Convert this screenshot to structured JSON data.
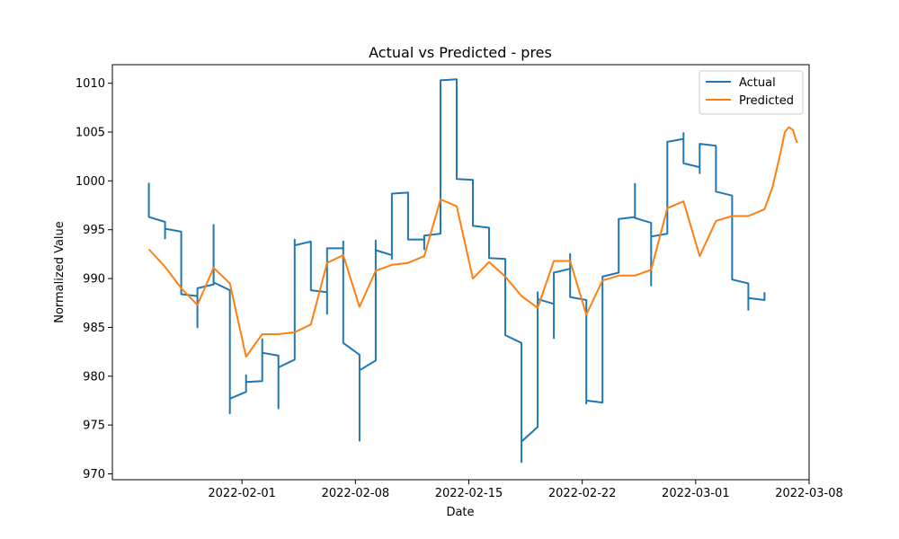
{
  "chart_data": {
    "type": "line",
    "title": "Actual vs Predicted - pres",
    "xlabel": "Date",
    "ylabel": "Normalized Value",
    "xlim": [
      "2022-01-24",
      "2022-03-08"
    ],
    "ylim": [
      969.4,
      1011.9
    ],
    "x_ticks": [
      "2022-02-01",
      "2022-02-08",
      "2022-02-15",
      "2022-02-22",
      "2022-03-01",
      "2022-03-08"
    ],
    "y_ticks": [
      970,
      975,
      980,
      985,
      990,
      995,
      1000,
      1005,
      1010
    ],
    "grid": false,
    "legend": {
      "position": "top-right"
    },
    "series": [
      {
        "name": "Actual",
        "color": "#1f77b4",
        "points": [
          [
            "2022-01-26T06:00",
            999.8
          ],
          [
            "2022-01-26T06:00",
            996.3
          ],
          [
            "2022-01-27T06:00",
            995.8
          ],
          [
            "2022-01-27T06:00",
            994.1
          ],
          [
            "2022-01-27T06:00",
            995.1
          ],
          [
            "2022-01-28T06:00",
            994.8
          ],
          [
            "2022-01-28T06:00",
            988.4
          ],
          [
            "2022-01-29T06:00",
            988.2
          ],
          [
            "2022-01-29T06:00",
            985.0
          ],
          [
            "2022-01-29T06:00",
            989.0
          ],
          [
            "2022-01-30T06:00",
            989.4
          ],
          [
            "2022-01-30T06:00",
            995.5
          ],
          [
            "2022-01-30T06:00",
            989.6
          ],
          [
            "2022-01-31T06:00",
            988.8
          ],
          [
            "2022-01-31T06:00",
            976.2
          ],
          [
            "2022-01-31T06:00",
            977.7
          ],
          [
            "2022-02-01T06:00",
            978.4
          ],
          [
            "2022-02-01T06:00",
            980.1
          ],
          [
            "2022-02-01T06:00",
            979.4
          ],
          [
            "2022-02-02T06:00",
            979.5
          ],
          [
            "2022-02-02T06:00",
            983.8
          ],
          [
            "2022-02-02T06:00",
            982.4
          ],
          [
            "2022-02-03T06:00",
            982.1
          ],
          [
            "2022-02-03T06:00",
            976.7
          ],
          [
            "2022-02-03T06:00",
            980.9
          ],
          [
            "2022-02-04T06:00",
            981.7
          ],
          [
            "2022-02-04T06:00",
            994.0
          ],
          [
            "2022-02-04T06:00",
            993.4
          ],
          [
            "2022-02-05T06:00",
            993.8
          ],
          [
            "2022-02-05T06:00",
            988.8
          ],
          [
            "2022-02-06T06:00",
            988.6
          ],
          [
            "2022-02-06T06:00",
            986.4
          ],
          [
            "2022-02-06T06:00",
            993.1
          ],
          [
            "2022-02-07T06:00",
            993.1
          ],
          [
            "2022-02-07T06:00",
            993.8
          ],
          [
            "2022-02-07T06:00",
            983.4
          ],
          [
            "2022-02-08T06:00",
            982.2
          ],
          [
            "2022-02-08T06:00",
            973.4
          ],
          [
            "2022-02-08T06:00",
            980.6
          ],
          [
            "2022-02-09T06:00",
            981.6
          ],
          [
            "2022-02-09T06:00",
            993.9
          ],
          [
            "2022-02-09T06:00",
            992.9
          ],
          [
            "2022-02-10T06:00",
            992.4
          ],
          [
            "2022-02-10T06:00",
            992.0
          ],
          [
            "2022-02-10T06:00",
            998.7
          ],
          [
            "2022-02-11T06:00",
            998.8
          ],
          [
            "2022-02-11T06:00",
            994.0
          ],
          [
            "2022-02-12T06:00",
            994.0
          ],
          [
            "2022-02-12T06:00",
            993.0
          ],
          [
            "2022-02-12T06:00",
            994.4
          ],
          [
            "2022-02-13T06:00",
            994.6
          ],
          [
            "2022-02-13T06:00",
            1010.3
          ],
          [
            "2022-02-14T06:00",
            1010.4
          ],
          [
            "2022-02-14T06:00",
            1000.2
          ],
          [
            "2022-02-15T06:00",
            1000.1
          ],
          [
            "2022-02-15T06:00",
            995.4
          ],
          [
            "2022-02-16T06:00",
            995.2
          ],
          [
            "2022-02-16T06:00",
            992.1
          ],
          [
            "2022-02-17T06:00",
            992.0
          ],
          [
            "2022-02-17T06:00",
            984.2
          ],
          [
            "2022-02-18T06:00",
            983.4
          ],
          [
            "2022-02-18T06:00",
            971.2
          ],
          [
            "2022-02-18T06:00",
            973.3
          ],
          [
            "2022-02-19T06:00",
            974.8
          ],
          [
            "2022-02-19T06:00",
            988.6
          ],
          [
            "2022-02-19T06:00",
            987.9
          ],
          [
            "2022-02-20T06:00",
            987.4
          ],
          [
            "2022-02-20T06:00",
            983.9
          ],
          [
            "2022-02-20T06:00",
            990.6
          ],
          [
            "2022-02-21T06:00",
            991.0
          ],
          [
            "2022-02-21T06:00",
            992.5
          ],
          [
            "2022-02-21T06:00",
            988.1
          ],
          [
            "2022-02-22T06:00",
            987.8
          ],
          [
            "2022-02-22T06:00",
            977.2
          ],
          [
            "2022-02-22T06:00",
            977.5
          ],
          [
            "2022-02-23T06:00",
            977.3
          ],
          [
            "2022-02-23T06:00",
            990.2
          ],
          [
            "2022-02-24T06:00",
            990.6
          ],
          [
            "2022-02-24T06:00",
            996.1
          ],
          [
            "2022-02-25T06:00",
            996.3
          ],
          [
            "2022-02-25T06:00",
            999.7
          ],
          [
            "2022-02-25T06:00",
            996.2
          ],
          [
            "2022-02-26T06:00",
            995.7
          ],
          [
            "2022-02-26T06:00",
            989.3
          ],
          [
            "2022-02-26T06:00",
            994.3
          ],
          [
            "2022-02-27T06:00",
            994.6
          ],
          [
            "2022-02-27T06:00",
            1004.0
          ],
          [
            "2022-02-28T06:00",
            1004.3
          ],
          [
            "2022-02-28T06:00",
            1004.9
          ],
          [
            "2022-02-28T06:00",
            1001.8
          ],
          [
            "2022-03-01T06:00",
            1001.4
          ],
          [
            "2022-03-01T06:00",
            1000.8
          ],
          [
            "2022-03-01T06:00",
            1003.8
          ],
          [
            "2022-03-02T06:00",
            1003.6
          ],
          [
            "2022-03-02T06:00",
            998.9
          ],
          [
            "2022-03-03T06:00",
            998.5
          ],
          [
            "2022-03-03T06:00",
            989.9
          ],
          [
            "2022-03-04T06:00",
            989.5
          ],
          [
            "2022-03-04T06:00",
            986.8
          ],
          [
            "2022-03-04T06:00",
            988.0
          ],
          [
            "2022-03-05T06:00",
            987.8
          ],
          [
            "2022-03-05T06:00",
            988.6
          ]
        ]
      },
      {
        "name": "Predicted",
        "color": "#ff7f0e",
        "points": [
          [
            "2022-01-26T06:00",
            993.0
          ],
          [
            "2022-01-27T06:00",
            991.2
          ],
          [
            "2022-01-28T06:00",
            989.0
          ],
          [
            "2022-01-29T06:00",
            987.3
          ],
          [
            "2022-01-30T06:00",
            991.1
          ],
          [
            "2022-01-31T06:00",
            989.5
          ],
          [
            "2022-02-01T06:00",
            982.0
          ],
          [
            "2022-02-02T06:00",
            984.3
          ],
          [
            "2022-02-03T06:00",
            984.3
          ],
          [
            "2022-02-04T06:00",
            984.5
          ],
          [
            "2022-02-05T06:00",
            985.3
          ],
          [
            "2022-02-06T06:00",
            991.6
          ],
          [
            "2022-02-07T06:00",
            992.4
          ],
          [
            "2022-02-08T06:00",
            987.1
          ],
          [
            "2022-02-09T06:00",
            990.8
          ],
          [
            "2022-02-10T06:00",
            991.4
          ],
          [
            "2022-02-11T06:00",
            991.6
          ],
          [
            "2022-02-12T06:00",
            992.3
          ],
          [
            "2022-02-13T06:00",
            998.1
          ],
          [
            "2022-02-14T06:00",
            997.4
          ],
          [
            "2022-02-15T06:00",
            990.0
          ],
          [
            "2022-02-16T06:00",
            991.7
          ],
          [
            "2022-02-17T06:00",
            990.2
          ],
          [
            "2022-02-18T06:00",
            988.2
          ],
          [
            "2022-02-19T06:00",
            987.0
          ],
          [
            "2022-02-20T06:00",
            991.8
          ],
          [
            "2022-02-21T06:00",
            991.8
          ],
          [
            "2022-02-22T06:00",
            986.3
          ],
          [
            "2022-02-23T06:00",
            989.8
          ],
          [
            "2022-02-24T06:00",
            990.3
          ],
          [
            "2022-02-25T06:00",
            990.3
          ],
          [
            "2022-02-26T06:00",
            990.9
          ],
          [
            "2022-02-27T06:00",
            997.2
          ],
          [
            "2022-02-28T06:00",
            997.9
          ],
          [
            "2022-03-01T06:00",
            992.3
          ],
          [
            "2022-03-02T06:00",
            995.9
          ],
          [
            "2022-03-03T06:00",
            996.4
          ],
          [
            "2022-03-04T06:00",
            996.4
          ],
          [
            "2022-03-05T06:00",
            997.1
          ],
          [
            "2022-03-05T18:00",
            999.4
          ],
          [
            "2022-03-06T06:00",
            1003.0
          ],
          [
            "2022-03-06T12:00",
            1005.0
          ],
          [
            "2022-03-06T18:00",
            1005.5
          ],
          [
            "2022-03-07T00:00",
            1005.2
          ],
          [
            "2022-03-07T06:00",
            1003.9
          ]
        ]
      }
    ]
  }
}
